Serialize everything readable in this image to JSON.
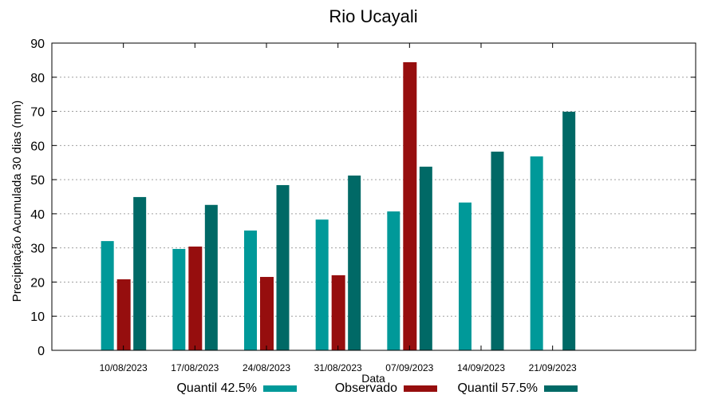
{
  "chart_data": {
    "type": "bar",
    "title": "Rio Ucayali",
    "xlabel": "Data",
    "ylabel": "Precipitação Acumulada 30 dias (mm)",
    "ylim": [
      0,
      90
    ],
    "yticks": [
      0,
      10,
      20,
      30,
      40,
      50,
      60,
      70,
      80,
      90
    ],
    "grid": true,
    "legend_placement": "bottom",
    "categories": [
      "10/08/2023",
      "17/08/2023",
      "24/08/2023",
      "31/08/2023",
      "07/09/2023",
      "14/09/2023",
      "21/09/2023"
    ],
    "series": [
      {
        "name": "Quantil 42.5%",
        "color": "#009999",
        "values": [
          32.0,
          29.7,
          35.1,
          38.3,
          40.7,
          43.3,
          56.8
        ]
      },
      {
        "name": "Observado",
        "color": "#960E0E",
        "values": [
          20.8,
          30.4,
          21.5,
          22.0,
          84.4,
          null,
          null
        ]
      },
      {
        "name": "Quantil 57.5%",
        "color": "#006966",
        "values": [
          44.9,
          42.6,
          48.4,
          51.2,
          53.8,
          58.2,
          69.9
        ]
      }
    ]
  }
}
